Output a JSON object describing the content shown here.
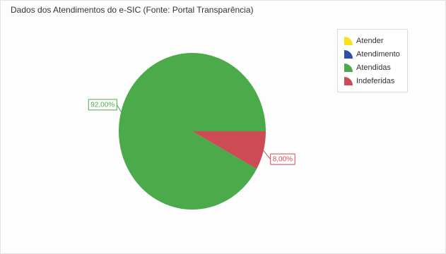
{
  "chart_data": {
    "type": "pie",
    "title": "Dados dos Atendimentos do e-SIC (Fonte: Portal Transparência)",
    "categories": [
      "Atender",
      "Atendimento",
      "Atendidas",
      "Indeferidas"
    ],
    "values": [
      0,
      0,
      92,
      8
    ],
    "colors": [
      "#f7e21c",
      "#2c4fa8",
      "#4bab4b",
      "#cc4b55"
    ],
    "data_labels": [
      "",
      "",
      "92,00%",
      "8,00%"
    ],
    "legend_placement": "top-right"
  }
}
